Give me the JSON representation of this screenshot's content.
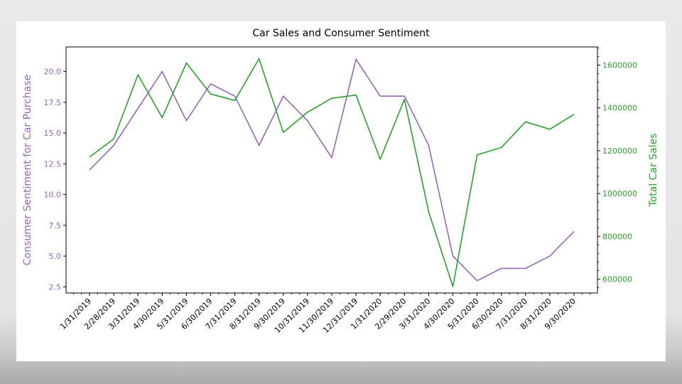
{
  "chart_data": {
    "type": "line",
    "title": "Car Sales and Consumer Sentiment",
    "categories": [
      "1/31/2019",
      "2/28/2019",
      "3/31/2019",
      "4/30/2019",
      "5/31/2019",
      "6/30/2019",
      "7/31/2019",
      "8/31/2019",
      "9/30/2019",
      "10/31/2019",
      "11/30/2019",
      "12/31/2019",
      "1/31/2020",
      "2/29/2020",
      "3/31/2020",
      "4/30/2020",
      "5/31/2020",
      "6/30/2020",
      "7/31/2020",
      "8/31/2020",
      "9/30/2020"
    ],
    "series": [
      {
        "name": "Consumer Sentiment for Car Purchase",
        "axis": "left",
        "color": "#9467bd",
        "values": [
          12,
          14,
          17,
          20,
          16,
          19,
          18,
          14,
          18,
          16,
          13,
          21,
          18,
          18,
          14,
          5,
          3,
          4,
          4,
          5,
          7
        ]
      },
      {
        "name": "Total Car Sales",
        "axis": "right",
        "color": "#2ca02c",
        "values": [
          1170000,
          1255000,
          1555000,
          1355000,
          1610000,
          1465000,
          1435000,
          1630000,
          1285000,
          1380000,
          1445000,
          1460000,
          1160000,
          1440000,
          915000,
          565000,
          1180000,
          1215000,
          1335000,
          1300000,
          1370000
        ]
      }
    ],
    "ylabel_left": "Consumer Sentiment for Car Purchase",
    "ylabel_right": "Total Car Sales",
    "ylim_left": [
      2.0,
      22.0
    ],
    "ylim_right": [
      535000,
      1685000
    ],
    "yticks_left": [
      "2.5",
      "5.0",
      "7.5",
      "10.0",
      "12.5",
      "15.0",
      "17.5",
      "20.0"
    ],
    "yticks_right": [
      "600000",
      "800000",
      "1000000",
      "1200000",
      "1400000",
      "1600000"
    ],
    "grid": false,
    "legend": "none"
  }
}
